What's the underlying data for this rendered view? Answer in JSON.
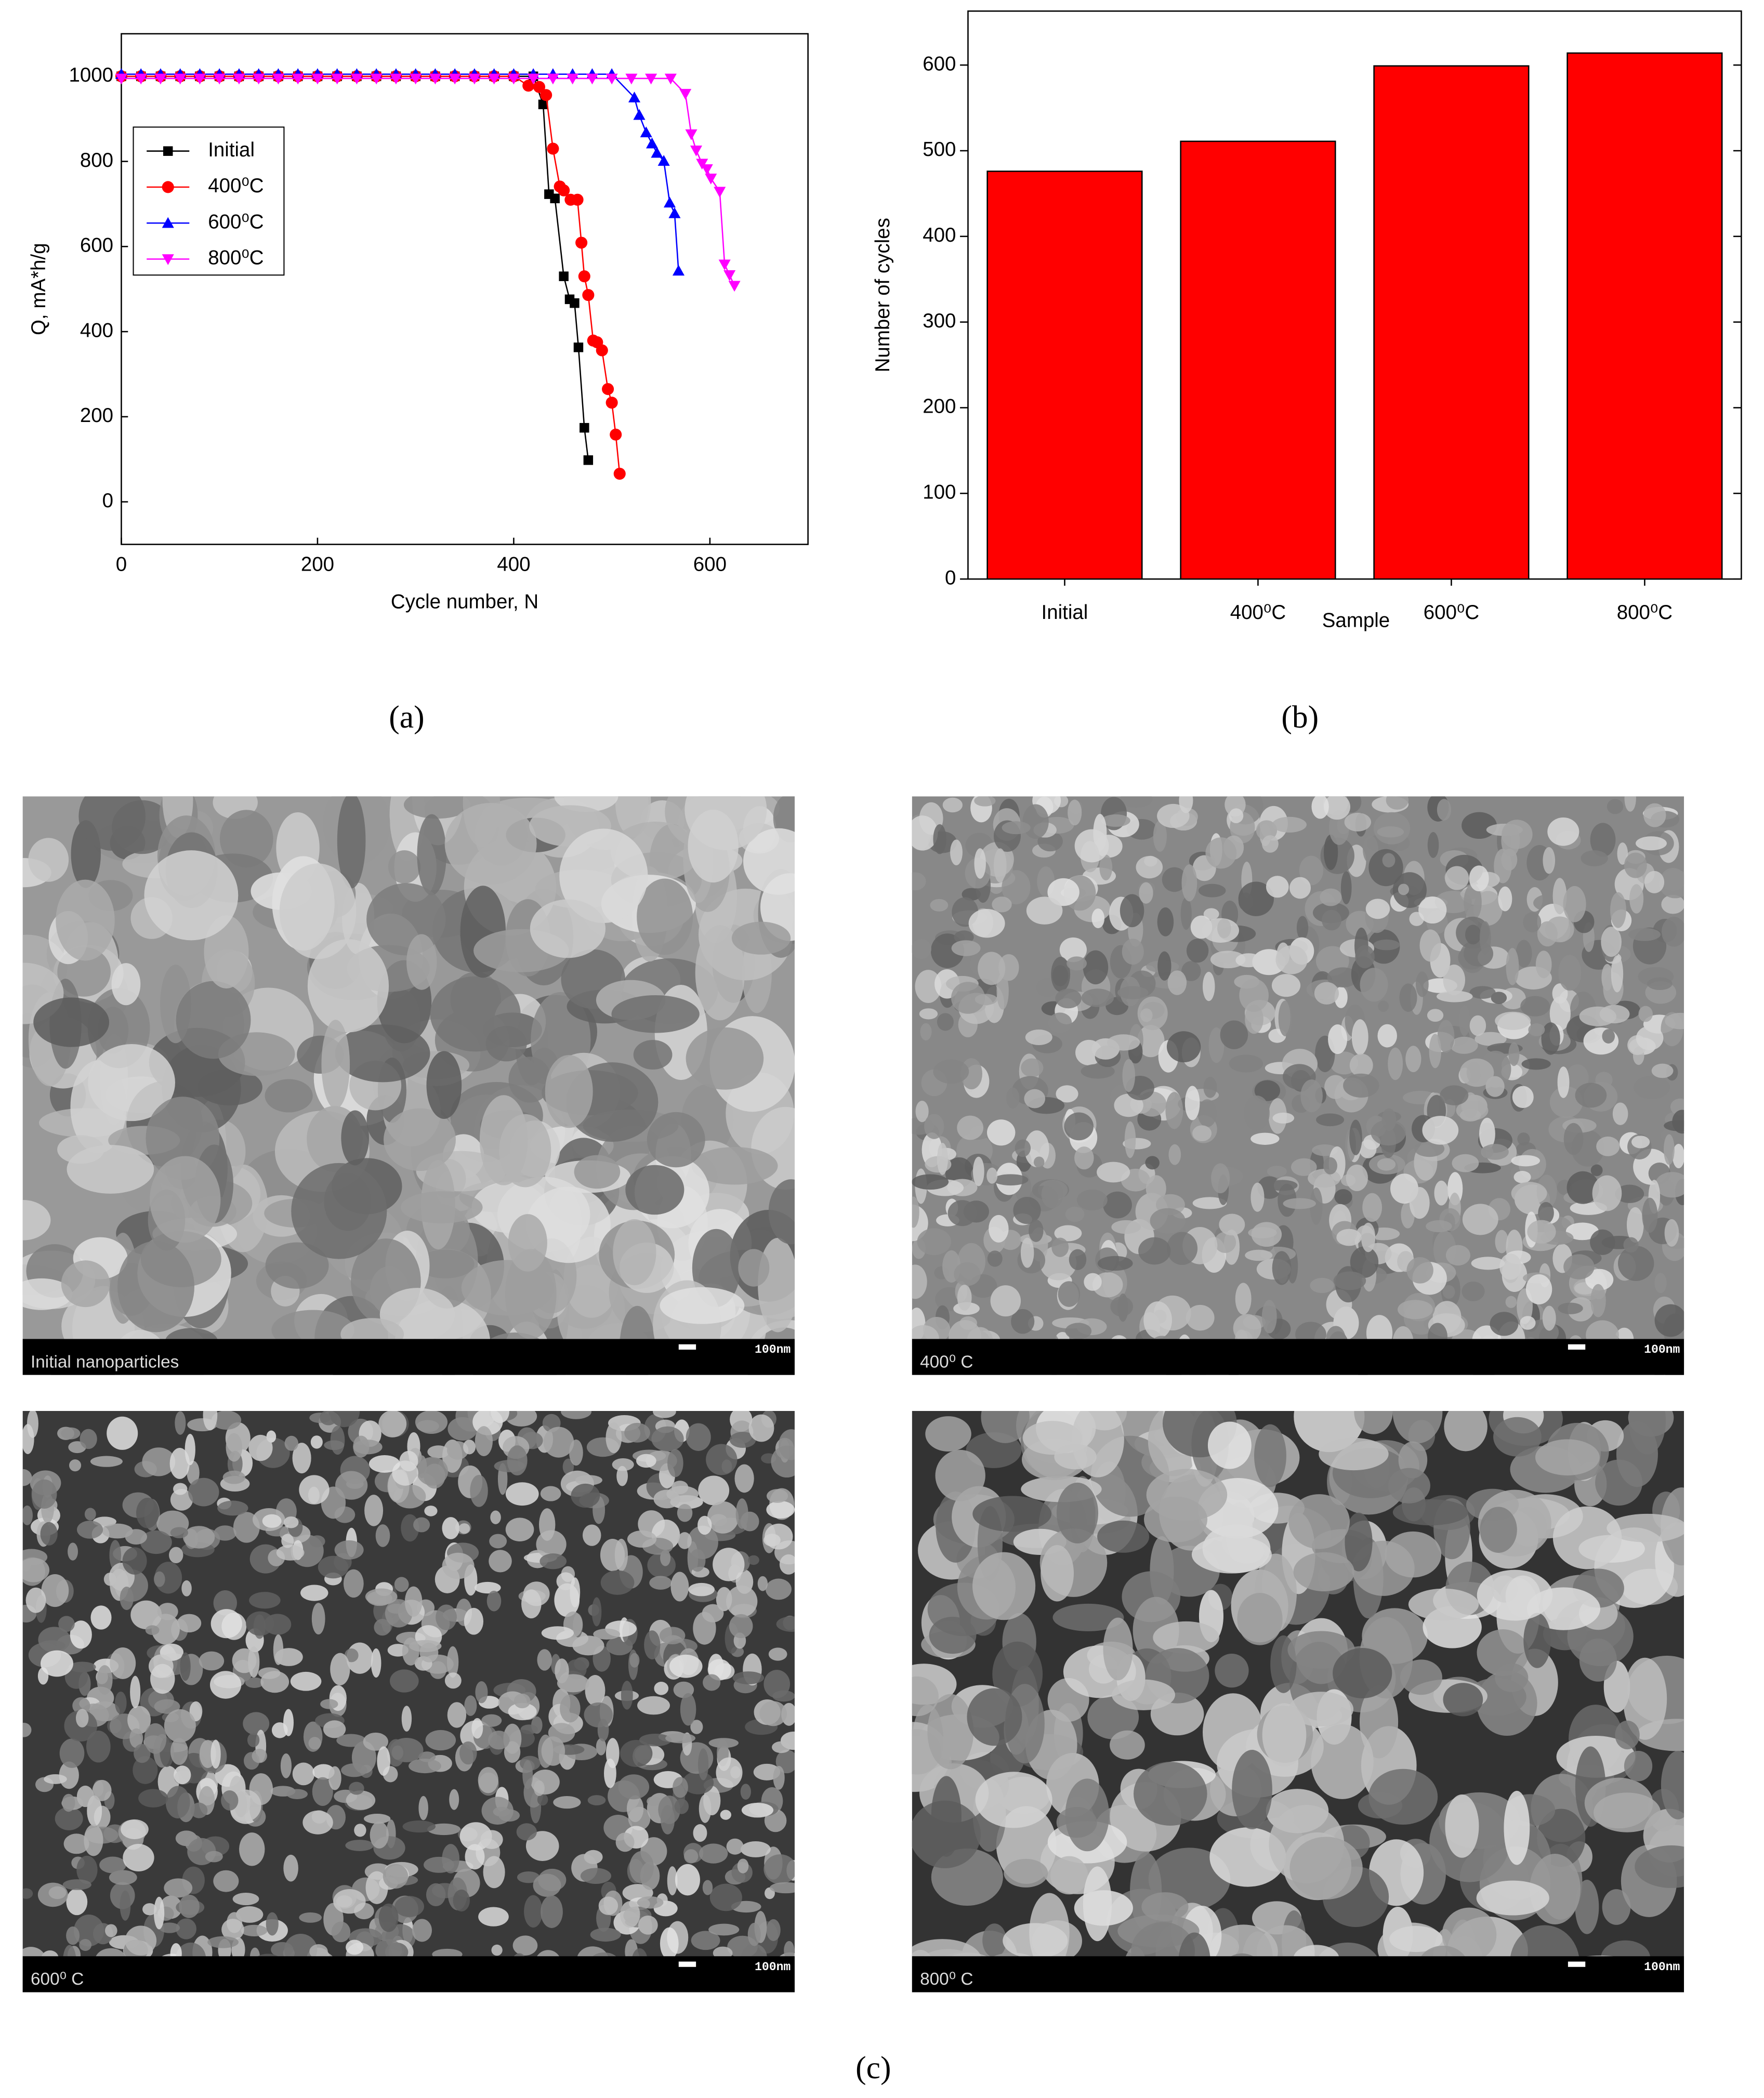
{
  "chart_data": [
    {
      "type": "line",
      "x_label": "Cycle number, N",
      "y_label": "Q, mA*h/g",
      "xlim": [
        0,
        700
      ],
      "xticks": [
        0,
        200,
        400,
        600
      ],
      "ylim": [
        -100,
        1100
      ],
      "yticks": [
        0,
        200,
        400,
        600,
        800,
        1000
      ],
      "series": [
        {
          "name": "Initial",
          "color": "#000000",
          "marker": "square",
          "x": [
            0,
            20,
            40,
            60,
            80,
            100,
            120,
            140,
            160,
            180,
            200,
            220,
            240,
            260,
            280,
            300,
            320,
            340,
            360,
            380,
            400,
            420,
            430,
            436,
            442,
            451,
            457,
            462,
            466,
            472,
            476
          ],
          "values": [
            1000,
            1000,
            1000,
            1000,
            1000,
            1000,
            1000,
            1000,
            1000,
            1000,
            1000,
            1000,
            1000,
            1000,
            1000,
            1000,
            1000,
            1000,
            1000,
            1000,
            1000,
            1000,
            934,
            723,
            713,
            530,
            476,
            467,
            363,
            174,
            98
          ]
        },
        {
          "name": "400⁰C",
          "color": "#ff0000",
          "marker": "circle",
          "x": [
            0,
            20,
            40,
            60,
            80,
            100,
            120,
            140,
            160,
            180,
            200,
            220,
            240,
            260,
            280,
            300,
            320,
            340,
            360,
            380,
            400,
            415,
            426,
            433,
            440,
            447,
            451,
            458,
            465,
            469,
            472,
            476,
            481,
            485,
            490,
            496,
            500,
            504,
            508
          ],
          "values": [
            1000,
            1000,
            1000,
            1000,
            1000,
            1000,
            1000,
            1000,
            1000,
            1000,
            1000,
            1000,
            1000,
            1000,
            1000,
            1000,
            1000,
            1000,
            1000,
            1000,
            1000,
            978,
            975,
            956,
            830,
            741,
            732,
            710,
            710,
            609,
            530,
            486,
            379,
            375,
            356,
            265,
            233,
            158,
            66
          ]
        },
        {
          "name": "600⁰C",
          "color": "#0000ff",
          "marker": "triangle",
          "x": [
            0,
            20,
            40,
            60,
            80,
            100,
            120,
            140,
            160,
            180,
            200,
            220,
            240,
            260,
            280,
            300,
            320,
            340,
            360,
            380,
            400,
            420,
            440,
            460,
            480,
            500,
            523,
            528,
            535,
            541,
            546,
            553,
            559,
            564,
            568
          ],
          "values": [
            1005,
            1005,
            1005,
            1005,
            1005,
            1005,
            1005,
            1005,
            1005,
            1005,
            1005,
            1005,
            1005,
            1005,
            1005,
            1005,
            1005,
            1005,
            1005,
            1005,
            1005,
            1005,
            1005,
            1005,
            1005,
            1005,
            950,
            909,
            868,
            842,
            820,
            801,
            703,
            678,
            543
          ]
        },
        {
          "name": "800⁰C",
          "color": "#ff00ff",
          "marker": "triangle-down",
          "x": [
            0,
            20,
            40,
            60,
            80,
            100,
            120,
            140,
            160,
            180,
            200,
            220,
            240,
            260,
            280,
            300,
            320,
            340,
            360,
            380,
            400,
            420,
            440,
            460,
            480,
            500,
            520,
            540,
            560,
            575,
            581,
            586,
            592,
            597,
            601,
            610,
            615,
            620,
            625
          ],
          "values": [
            995,
            995,
            995,
            995,
            995,
            995,
            995,
            995,
            995,
            995,
            995,
            995,
            995,
            995,
            995,
            995,
            995,
            995,
            995,
            995,
            995,
            995,
            995,
            995,
            995,
            995,
            995,
            995,
            995,
            959,
            864,
            826,
            795,
            782,
            760,
            729,
            558,
            533,
            508
          ]
        }
      ]
    },
    {
      "type": "bar",
      "x_label": "Sample",
      "y_label": "Number of cycles",
      "categories": [
        "Initial",
        "400⁰C",
        "600⁰C",
        "800⁰C"
      ],
      "values": [
        476,
        511,
        599,
        614
      ],
      "color": "#ff0000",
      "ylim": [
        0,
        663
      ],
      "yticks": [
        0,
        100,
        200,
        300,
        400,
        500,
        600
      ]
    }
  ],
  "captions": [
    "(a)",
    "(b)",
    "(c)"
  ],
  "sem_images": [
    {
      "label": "Initial nanoparticles",
      "scale": "100nm"
    },
    {
      "label": "400⁰ C",
      "scale": "100nm"
    },
    {
      "label": "600⁰ C",
      "scale": "100nm"
    },
    {
      "label": "800⁰ C",
      "scale": "100nm"
    }
  ]
}
